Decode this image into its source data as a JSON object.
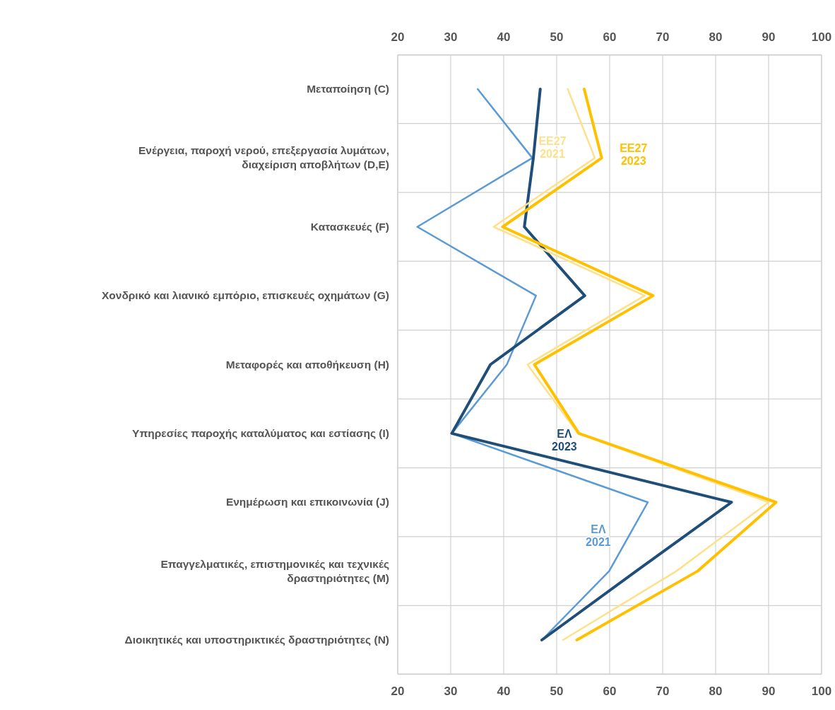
{
  "chart_data": {
    "type": "line",
    "orientation": "horizontal",
    "categories": [
      "Μεταποίηση (C)",
      "Ενέργεια, παροχή νερού, επεξεργασία λυμάτων, διαχείριση αποβλήτων (D,E)",
      "Κατασκευές (F)",
      "Χονδρικό και λιανικό εμπόριο, επισκευές οχημάτων (G)",
      "Μεταφορές και αποθήκευση (H)",
      "Υπηρεσίες παροχής καταλύματος και εστίασης (I)",
      "Ενημέρωση και επικοινωνία (J)",
      "Επαγγελματικές, επιστημονικές και τεχνικές δραστηριότητες (M)",
      "Διοικητικές και υποστηρικτικές δραστηριότητες (N)"
    ],
    "series": [
      {
        "name": "ΕΛ 2021",
        "color": "#5b9bd5",
        "values": [
          35.1,
          45.4,
          23.7,
          46.1,
          40.6,
          30.2,
          67.2,
          59.9,
          47.2
        ]
      },
      {
        "name": "ΕΛ 2023",
        "color": "#1f4e79",
        "values": [
          46.9,
          45.6,
          43.9,
          55.3,
          37.5,
          30.2,
          83.0,
          65.0,
          47.2
        ]
      },
      {
        "name": "ΕΕ27 2021",
        "color": "#ffe08a",
        "values": [
          52.1,
          57.2,
          38.1,
          66.6,
          44.5,
          54.0,
          90.0,
          72.6,
          51.2
        ]
      },
      {
        "name": "ΕΕ27 2023",
        "color": "#ffc000",
        "values": [
          55.2,
          58.5,
          39.8,
          68.2,
          45.8,
          54.2,
          91.4,
          76.6,
          53.8
        ]
      }
    ],
    "xlim": [
      20,
      100
    ],
    "xticks": [
      20,
      30,
      40,
      50,
      60,
      70,
      80,
      90,
      100
    ],
    "x2lim": [
      20,
      100
    ],
    "x2ticks": [
      20,
      30,
      40,
      50,
      60,
      70,
      80,
      90,
      100
    ],
    "grid": true,
    "legend": false,
    "line_style": "solid",
    "marker": "none"
  }
}
